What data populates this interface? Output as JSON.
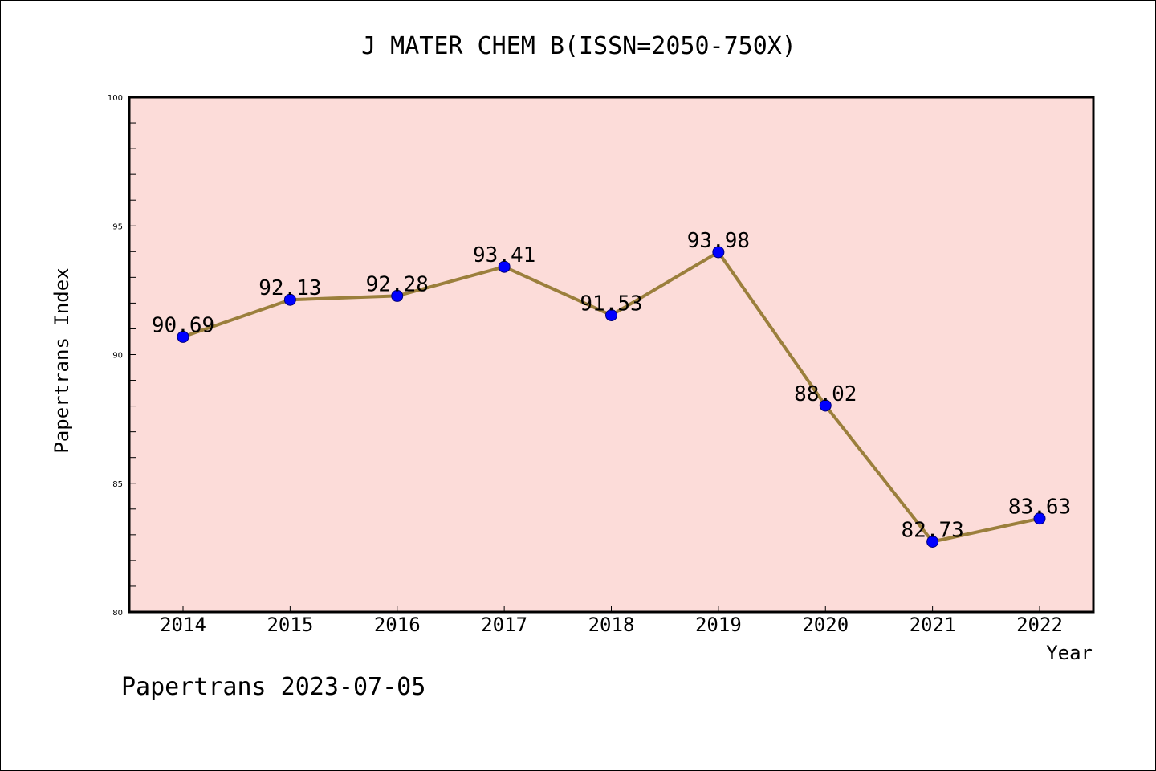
{
  "footer": {
    "text": "Papertrans 2023-07-05"
  },
  "chart_data": {
    "type": "line",
    "title": "J MATER CHEM B(ISSN=2050-750X)",
    "xlabel": "Year",
    "ylabel": "Papertrans Index",
    "categories": [
      "2014",
      "2015",
      "2016",
      "2017",
      "2018",
      "2019",
      "2020",
      "2021",
      "2022"
    ],
    "series": [
      {
        "values": [
          90.69,
          92.13,
          92.28,
          93.41,
          91.53,
          93.98,
          88.02,
          82.73,
          83.63
        ],
        "labels": [
          "90.69",
          "92.13",
          "92.28",
          "93.41",
          "91.53",
          "93.98",
          "88.02",
          "82.73",
          "83.63"
        ]
      }
    ],
    "ylim": [
      80,
      100
    ],
    "yticks": [
      "80",
      "85",
      "90",
      "95",
      "100"
    ],
    "grid": false,
    "legend": "none",
    "colors": {
      "plot_background": "#fcdcd9",
      "line": "#9b7f3c",
      "marker": "#0000ff",
      "frame": "#000000"
    }
  }
}
